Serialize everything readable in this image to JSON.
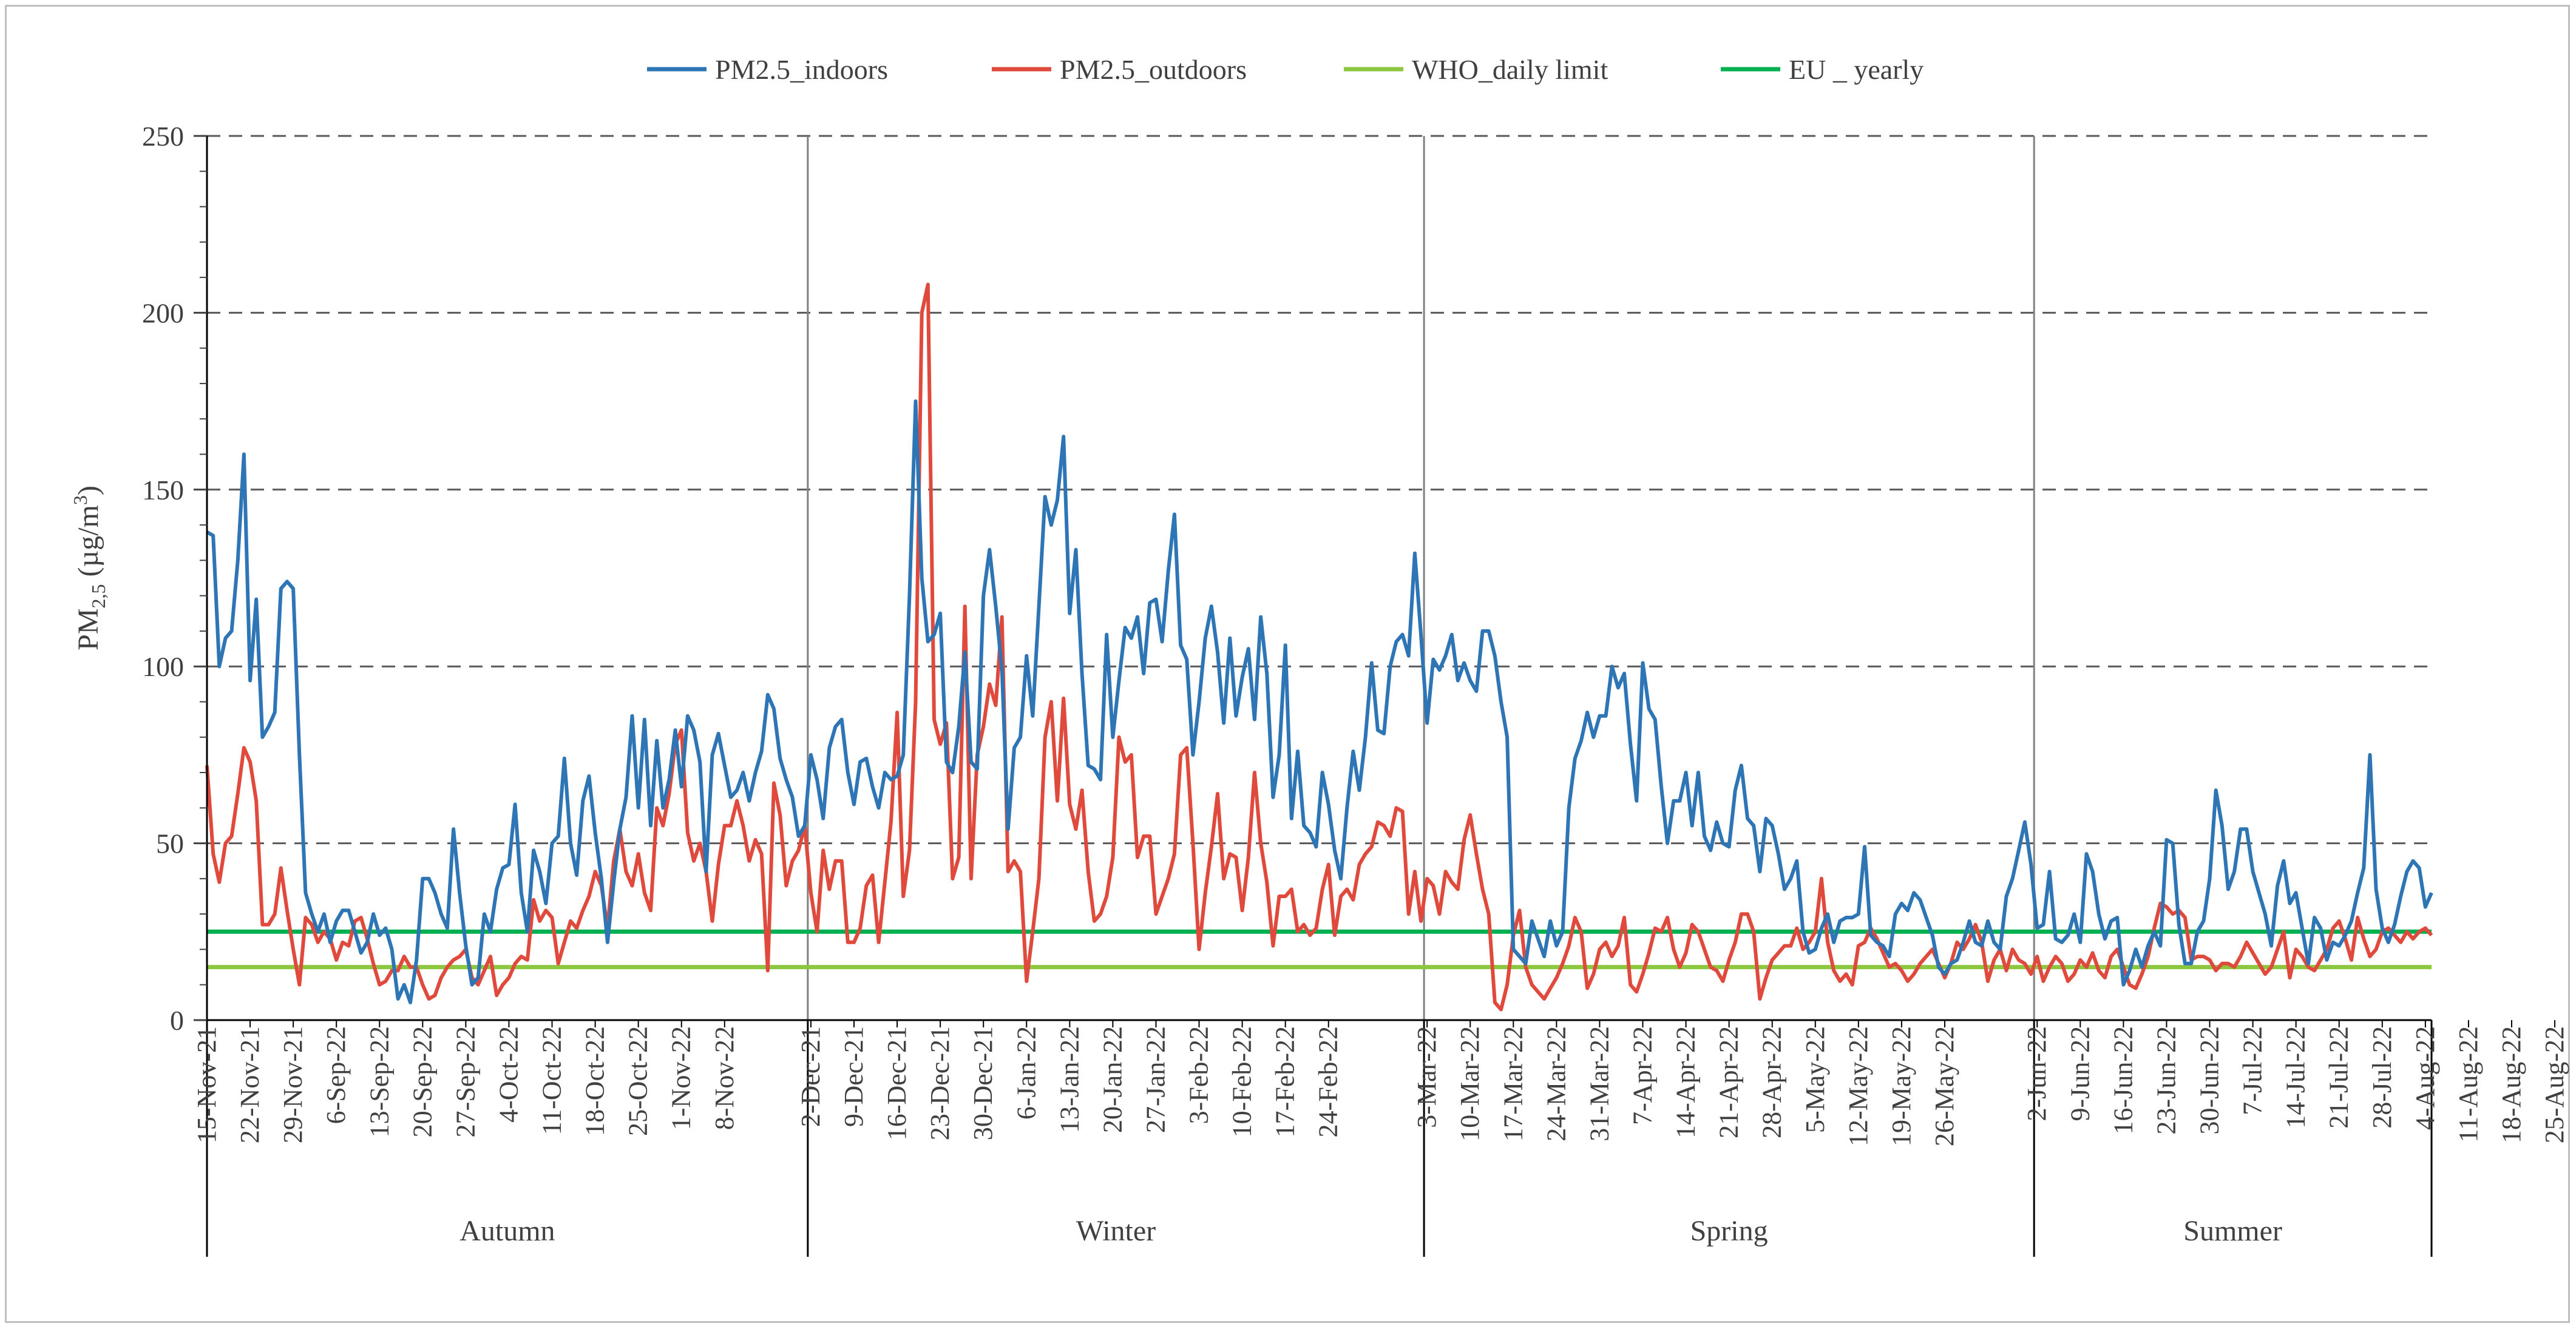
{
  "chart_data": {
    "type": "line",
    "title": "",
    "ylabel": "PM2,5 (µg/m3)",
    "ylabel_parts": {
      "base": "PM",
      "sub": "2,5",
      "unit_pre": " (µg/m",
      "unit_sup": "3",
      "unit_post": ")"
    },
    "xlabel": "",
    "ylim": [
      0,
      250
    ],
    "yticks": [
      0,
      50,
      100,
      150,
      200,
      250
    ],
    "grid": "dashed horizontal",
    "legend_position": "top",
    "colors": {
      "indoors": "#2e75b6",
      "outdoors": "#e04a3c",
      "who": "#8dc63f",
      "eu": "#00b050",
      "grid": "#595959",
      "divider": "#7f7f7f"
    },
    "seasons": [
      {
        "name": "Autumn",
        "start": 0,
        "end": 98
      },
      {
        "name": "Winter",
        "start": 98,
        "end": 198
      },
      {
        "name": "Spring",
        "start": 198,
        "end": 297
      },
      {
        "name": "Summer",
        "start": 297,
        "end": 393
      }
    ],
    "x_tick_labels": [
      {
        "i": 0,
        "label": "15-Nov-21"
      },
      {
        "i": 7,
        "label": "22-Nov-21"
      },
      {
        "i": 14,
        "label": "29-Nov-21"
      },
      {
        "i": 21,
        "label": "6-Sep-22"
      },
      {
        "i": 28,
        "label": "13-Sep-22"
      },
      {
        "i": 35,
        "label": "20-Sep-22"
      },
      {
        "i": 42,
        "label": "27-Sep-22"
      },
      {
        "i": 49,
        "label": "4-Oct-22"
      },
      {
        "i": 56,
        "label": "11-Oct-22"
      },
      {
        "i": 63,
        "label": "18-Oct-22"
      },
      {
        "i": 70,
        "label": "25-Oct-22"
      },
      {
        "i": 77,
        "label": "1-Nov-22"
      },
      {
        "i": 84,
        "label": "8-Nov-22"
      },
      {
        "i": 98,
        "label": "2-Dec-21"
      },
      {
        "i": 105,
        "label": "9-Dec-21"
      },
      {
        "i": 112,
        "label": "16-Dec-21"
      },
      {
        "i": 119,
        "label": "23-Dec-21"
      },
      {
        "i": 126,
        "label": "30-Dec-21"
      },
      {
        "i": 133,
        "label": "6-Jan-22"
      },
      {
        "i": 140,
        "label": "13-Jan-22"
      },
      {
        "i": 147,
        "label": "20-Jan-22"
      },
      {
        "i": 154,
        "label": "27-Jan-22"
      },
      {
        "i": 161,
        "label": "3-Feb-22"
      },
      {
        "i": 168,
        "label": "10-Feb-22"
      },
      {
        "i": 175,
        "label": "17-Feb-22"
      },
      {
        "i": 182,
        "label": "24-Feb-22"
      },
      {
        "i": 198,
        "label": "3-Mar-22"
      },
      {
        "i": 205,
        "label": "10-Mar-22"
      },
      {
        "i": 212,
        "label": "17-Mar-22"
      },
      {
        "i": 219,
        "label": "24-Mar-22"
      },
      {
        "i": 226,
        "label": "31-Mar-22"
      },
      {
        "i": 233,
        "label": "7-Apr-22"
      },
      {
        "i": 240,
        "label": "14-Apr-22"
      },
      {
        "i": 247,
        "label": "21-Apr-22"
      },
      {
        "i": 254,
        "label": "28-Apr-22"
      },
      {
        "i": 261,
        "label": "5-May-22"
      },
      {
        "i": 268,
        "label": "12-May-22"
      },
      {
        "i": 275,
        "label": "19-May-22"
      },
      {
        "i": 282,
        "label": "26-May-22"
      },
      {
        "i": 297,
        "label": "2-Jun-22"
      },
      {
        "i": 304,
        "label": "9-Jun-22"
      },
      {
        "i": 311,
        "label": "16-Jun-22"
      },
      {
        "i": 318,
        "label": "23-Jun-22"
      },
      {
        "i": 325,
        "label": "30-Jun-22"
      },
      {
        "i": 332,
        "label": "7-Jul-22"
      },
      {
        "i": 339,
        "label": "14-Jul-22"
      },
      {
        "i": 346,
        "label": "21-Jul-22"
      },
      {
        "i": 353,
        "label": "28-Jul-22"
      },
      {
        "i": 360,
        "label": "4-Aug-22"
      },
      {
        "i": 367,
        "label": "11-Aug-22"
      },
      {
        "i": 374,
        "label": "18-Aug-22"
      },
      {
        "i": 381,
        "label": "25-Aug-22"
      }
    ],
    "series": [
      {
        "name": "PM2.5_indoors",
        "key": "indoors",
        "color": "#2e75b6",
        "values": [
          138,
          137,
          100,
          108,
          110,
          130,
          160,
          96,
          119,
          80,
          83,
          87,
          122,
          124,
          122,
          75,
          36,
          30,
          25,
          30,
          22,
          28,
          31,
          31,
          25,
          19,
          22,
          30,
          24,
          26,
          20,
          6,
          10,
          5,
          17,
          40,
          40,
          36,
          30,
          26,
          54,
          36,
          21,
          10,
          12,
          30,
          25,
          37,
          43,
          44,
          61,
          36,
          25,
          48,
          42,
          33,
          50,
          52,
          74,
          50,
          41,
          62,
          69,
          53,
          40,
          22,
          39,
          54,
          63,
          86,
          60,
          85,
          55,
          79,
          60,
          68,
          82,
          66,
          86,
          82,
          73,
          42,
          75,
          81,
          72,
          63,
          65,
          70,
          62,
          70,
          76,
          92,
          88,
          74,
          68,
          63,
          52,
          55,
          75,
          68,
          57,
          77,
          83,
          85,
          70,
          61,
          73,
          74,
          66,
          60,
          70,
          68,
          69,
          75,
          120,
          175,
          125,
          107,
          109,
          115,
          73,
          70,
          83,
          104,
          73,
          71,
          120,
          133,
          117,
          99,
          54,
          77,
          80,
          103,
          86,
          117,
          148,
          140,
          147,
          165,
          115,
          133,
          98,
          72,
          71,
          68,
          109,
          80,
          96,
          111,
          108,
          114,
          98,
          118,
          119,
          107,
          127,
          143,
          106,
          102,
          75,
          90,
          108,
          117,
          104,
          84,
          108,
          86,
          97,
          105,
          85,
          114,
          98,
          63,
          75,
          106,
          57,
          76,
          55,
          53,
          49,
          70,
          61,
          48,
          40,
          60,
          76,
          65,
          80,
          101,
          82,
          81,
          100,
          107,
          109,
          103,
          132,
          109,
          84,
          102,
          99,
          103,
          109,
          96,
          101,
          96,
          93,
          110,
          110,
          103,
          90,
          80,
          20,
          18,
          16,
          28,
          23,
          18,
          28,
          21,
          25,
          60,
          74,
          79,
          87,
          80,
          86,
          86,
          100,
          94,
          98,
          78,
          62,
          101,
          88,
          85,
          66,
          50,
          62,
          62,
          70,
          55,
          70,
          52,
          48,
          56,
          50,
          49,
          65,
          72,
          57,
          55,
          42,
          57,
          55,
          47,
          37,
          40,
          45,
          25,
          19,
          20,
          26,
          30,
          22,
          28,
          29,
          29,
          30,
          49,
          24,
          22,
          21,
          18,
          30,
          33,
          31,
          36,
          34,
          29,
          24,
          15,
          13,
          16,
          17,
          22,
          28,
          22,
          21,
          28,
          22,
          20,
          35,
          40,
          48,
          56,
          44,
          26,
          27,
          42,
          23,
          22,
          24,
          30,
          22,
          47,
          42,
          30,
          23,
          28,
          29,
          10,
          14,
          20,
          15,
          21,
          25,
          21,
          51,
          50,
          27,
          16,
          16,
          25,
          28,
          40,
          65,
          55,
          37,
          42,
          54,
          54,
          42,
          36,
          30,
          21,
          38,
          45,
          33,
          36,
          26,
          16,
          29,
          26,
          17,
          22,
          21,
          24,
          28,
          36,
          43,
          75,
          37,
          26,
          22,
          27,
          35,
          42,
          45,
          43,
          32,
          36
        ]
      },
      {
        "name": "PM2.5_outdoors",
        "key": "outdoors",
        "color": "#e04a3c",
        "values": [
          72,
          47,
          39,
          50,
          52,
          64,
          77,
          73,
          62,
          27,
          27,
          30,
          43,
          31,
          20,
          10,
          29,
          27,
          22,
          25,
          23,
          17,
          22,
          21,
          28,
          29,
          23,
          16,
          10,
          11,
          14,
          14,
          18,
          15,
          15,
          10,
          6,
          7,
          12,
          15,
          17,
          18,
          20,
          12,
          10,
          14,
          18,
          7,
          10,
          12,
          16,
          18,
          17,
          34,
          28,
          31,
          29,
          16,
          22,
          28,
          26,
          31,
          35,
          42,
          38,
          26,
          45,
          54,
          42,
          38,
          47,
          36,
          31,
          60,
          55,
          64,
          78,
          82,
          53,
          45,
          50,
          42,
          28,
          44,
          55,
          55,
          62,
          55,
          45,
          51,
          47,
          14,
          67,
          58,
          38,
          45,
          48,
          55,
          36,
          25,
          48,
          37,
          45,
          45,
          22,
          22,
          26,
          38,
          41,
          22,
          39,
          56,
          87,
          35,
          48,
          90,
          200,
          208,
          85,
          78,
          84,
          40,
          46,
          117,
          40,
          75,
          83,
          95,
          89,
          114,
          42,
          45,
          42,
          11,
          25,
          40,
          80,
          90,
          62,
          91,
          61,
          54,
          65,
          42,
          28,
          30,
          35,
          46,
          80,
          73,
          75,
          46,
          52,
          52,
          30,
          35,
          40,
          47,
          75,
          77,
          50,
          20,
          36,
          49,
          64,
          40,
          47,
          46,
          31,
          46,
          70,
          50,
          39,
          21,
          35,
          35,
          37,
          25,
          27,
          24,
          26,
          37,
          44,
          24,
          35,
          37,
          34,
          44,
          47,
          49,
          56,
          55,
          52,
          60,
          59,
          30,
          42,
          28,
          40,
          38,
          30,
          42,
          39,
          37,
          51,
          58,
          47,
          37,
          30,
          5,
          3,
          10,
          24,
          31,
          15,
          10,
          8,
          6,
          9,
          12,
          16,
          21,
          29,
          25,
          9,
          13,
          20,
          22,
          18,
          21,
          29,
          10,
          8,
          13,
          19,
          26,
          25,
          29,
          20,
          15,
          19,
          27,
          25,
          20,
          15,
          14,
          11,
          17,
          22,
          30,
          30,
          25,
          6,
          12,
          17,
          19,
          21,
          21,
          26,
          20,
          22,
          25,
          40,
          22,
          14,
          11,
          13,
          10,
          21,
          22,
          26,
          23,
          19,
          15,
          16,
          14,
          11,
          13,
          16,
          18,
          20,
          16,
          12,
          16,
          22,
          20,
          23,
          27,
          22,
          11,
          17,
          20,
          14,
          20,
          17,
          16,
          13,
          18,
          11,
          15,
          18,
          16,
          11,
          13,
          17,
          15,
          19,
          14,
          12,
          18,
          20,
          15,
          10,
          9,
          13,
          18,
          26,
          33,
          32,
          30,
          31,
          29,
          17,
          18,
          18,
          17,
          14,
          16,
          16,
          15,
          18,
          22,
          19,
          16,
          13,
          15,
          20,
          25,
          12,
          20,
          18,
          15,
          14,
          17,
          20,
          26,
          28,
          23,
          17,
          29,
          23,
          18,
          20,
          25,
          26,
          24,
          22,
          25,
          23,
          25,
          26,
          24
        ]
      },
      {
        "name": "WHO_daily limit",
        "key": "who",
        "color": "#8dc63f",
        "constant": 15
      },
      {
        "name": "EU _ yearly",
        "key": "eu",
        "color": "#00b050",
        "constant": 25
      }
    ]
  }
}
